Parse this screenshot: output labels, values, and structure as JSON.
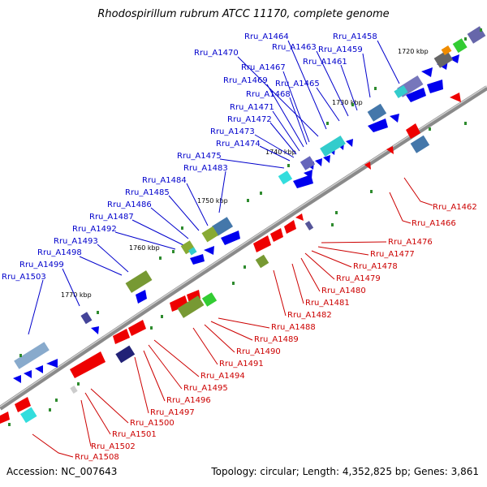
{
  "title": "Rhodospirillum rubrum ATCC 11170, complete genome",
  "accession": "Accession: NC_007643",
  "topology": "Topology: circular; Length: 4,352,825 bp; Genes: 3,861",
  "colors": {
    "forward_label": "#0000cc",
    "reverse_label": "#cc0000",
    "forward_gene": "#0000ee",
    "reverse_gene": "#ee0000",
    "backbone": "#777777",
    "tick_green": "#2e8b2e"
  },
  "scale_marks": [
    "1720 kbp",
    "1730 kbp",
    "1740 kbp",
    "1750 kbp",
    "1760 kbp",
    "1770 kbp"
  ],
  "forward_labels": [
    "Rru_A1464",
    "Rru_A1458",
    "Rru_A1463",
    "Rru_A1470",
    "Rru_A1459",
    "Rru_A1461",
    "Rru_A1467",
    "Rru_A1469",
    "Rru_A1465",
    "Rru_A1468",
    "Rru_A1471",
    "Rru_A1472",
    "Rru_A1473",
    "Rru_A1474",
    "Rru_A1475",
    "Rru_A1483",
    "Rru_A1484",
    "Rru_A1485",
    "Rru_A1486",
    "Rru_A1487",
    "Rru_A1492",
    "Rru_A1493",
    "Rru_A1498",
    "Rru_A1499",
    "Rru_A1503"
  ],
  "reverse_labels": [
    "Rru_A1462",
    "Rru_A1466",
    "Rru_A1476",
    "Rru_A1477",
    "Rru_A1478",
    "Rru_A1479",
    "Rru_A1480",
    "Rru_A1481",
    "Rru_A1482",
    "Rru_A1488",
    "Rru_A1489",
    "Rru_A1490",
    "Rru_A1491",
    "Rru_A1494",
    "Rru_A1495",
    "Rru_A1496",
    "Rru_A1497",
    "Rru_A1500",
    "Rru_A1501",
    "Rru_A1502",
    "Rru_A1508"
  ]
}
